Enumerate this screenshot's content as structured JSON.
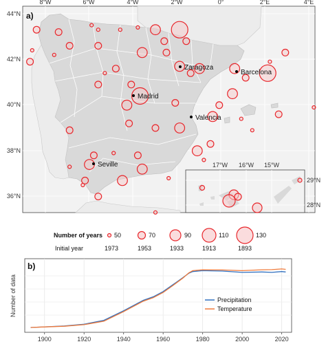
{
  "panel_a": {
    "label": "a)",
    "lon_ticks": [
      "8°W",
      "6°W",
      "4°W",
      "2°W",
      "0°",
      "2°E",
      "4°E"
    ],
    "lat_ticks": [
      "44°N",
      "42°N",
      "40°N",
      "38°N",
      "36°N"
    ],
    "cities": [
      "Zaragoza",
      "Barcelona",
      "Madrid",
      "Valencia",
      "Seville"
    ],
    "inset": {
      "lon_ticks": [
        "17°W",
        "16°W",
        "15°W"
      ],
      "lat_ticks": [
        "29°N",
        "28°N"
      ]
    },
    "colors": {
      "land": "#d9d9d9",
      "border": "#ffffff",
      "station_stroke": "#e8262b",
      "station_fill": "#f6c5c6",
      "panel_bg": "#f2f2f2"
    },
    "stations": [
      {
        "lon": -8.4,
        "lat": 43.3,
        "years": 70
      },
      {
        "lon": -8.6,
        "lat": 42.4,
        "years": 50
      },
      {
        "lon": -8.7,
        "lat": 41.9,
        "years": 70
      },
      {
        "lon": -7.6,
        "lat": 42.2,
        "years": 50
      },
      {
        "lon": -7.4,
        "lat": 43.2,
        "years": 70
      },
      {
        "lon": -6.9,
        "lat": 42.6,
        "years": 70
      },
      {
        "lon": -5.9,
        "lat": 43.5,
        "years": 50
      },
      {
        "lon": -5.6,
        "lat": 43.3,
        "years": 50
      },
      {
        "lon": -5.6,
        "lat": 42.6,
        "years": 70
      },
      {
        "lon": -4.6,
        "lat": 43.3,
        "years": 50
      },
      {
        "lon": -3.8,
        "lat": 43.4,
        "years": 50
      },
      {
        "lon": -3.6,
        "lat": 42.3,
        "years": 90
      },
      {
        "lon": -3.0,
        "lat": 43.3,
        "years": 90
      },
      {
        "lon": -2.6,
        "lat": 42.8,
        "years": 70
      },
      {
        "lon": -1.9,
        "lat": 43.3,
        "years": 130
      },
      {
        "lon": -1.6,
        "lat": 42.8,
        "years": 70
      },
      {
        "lon": -2.5,
        "lat": 42.3,
        "years": 70
      },
      {
        "lon": -5.3,
        "lat": 41.4,
        "years": 50
      },
      {
        "lon": -4.8,
        "lat": 41.6,
        "years": 70
      },
      {
        "lon": -4.1,
        "lat": 40.9,
        "years": 70
      },
      {
        "lon": -1.9,
        "lat": 41.7,
        "years": 90
      },
      {
        "lon": -1.4,
        "lat": 41.4,
        "years": 70
      },
      {
        "lon": -1.0,
        "lat": 41.6,
        "years": 90
      },
      {
        "lon": 0.6,
        "lat": 41.6,
        "years": 90
      },
      {
        "lon": 1.1,
        "lat": 41.2,
        "years": 70
      },
      {
        "lon": 2.1,
        "lat": 41.4,
        "years": 130
      },
      {
        "lon": 2.9,
        "lat": 42.3,
        "years": 70
      },
      {
        "lon": 2.2,
        "lat": 41.9,
        "years": 50
      },
      {
        "lon": -3.7,
        "lat": 40.4,
        "years": 130
      },
      {
        "lon": -4.3,
        "lat": 40.0,
        "years": 90
      },
      {
        "lon": -5.6,
        "lat": 40.9,
        "years": 70
      },
      {
        "lon": -2.1,
        "lat": 40.1,
        "years": 70
      },
      {
        "lon": -0.4,
        "lat": 39.5,
        "years": 90
      },
      {
        "lon": -0.1,
        "lat": 40.0,
        "years": 70
      },
      {
        "lon": 0.5,
        "lat": 40.5,
        "years": 90
      },
      {
        "lon": -3.0,
        "lat": 39.0,
        "years": 70
      },
      {
        "lon": -1.9,
        "lat": 39.0,
        "years": 90
      },
      {
        "lon": -4.2,
        "lat": 39.2,
        "years": 70
      },
      {
        "lon": -6.9,
        "lat": 38.9,
        "years": 70
      },
      {
        "lon": -5.8,
        "lat": 37.8,
        "years": 70
      },
      {
        "lon": -0.5,
        "lat": 38.3,
        "years": 70
      },
      {
        "lon": -1.1,
        "lat": 38.0,
        "years": 90
      },
      {
        "lon": -0.8,
        "lat": 37.6,
        "years": 50
      },
      {
        "lon": -3.8,
        "lat": 37.8,
        "years": 70
      },
      {
        "lon": -4.9,
        "lat": 37.9,
        "years": 50
      },
      {
        "lon": -3.6,
        "lat": 37.2,
        "years": 90
      },
      {
        "lon": -2.4,
        "lat": 36.8,
        "years": 50
      },
      {
        "lon": -6.0,
        "lat": 37.4,
        "years": 90
      },
      {
        "lon": -6.9,
        "lat": 37.3,
        "years": 50
      },
      {
        "lon": -6.2,
        "lat": 36.7,
        "years": 70
      },
      {
        "lon": -4.5,
        "lat": 36.7,
        "years": 90
      },
      {
        "lon": -5.6,
        "lat": 36.0,
        "years": 70
      },
      {
        "lon": -6.3,
        "lat": 36.5,
        "years": 50
      },
      {
        "lon": -3.0,
        "lat": 35.3,
        "years": 50
      },
      {
        "lon": 2.6,
        "lat": 39.6,
        "years": 70
      },
      {
        "lon": 4.2,
        "lat": 39.9,
        "years": 50
      },
      {
        "lon": 1.4,
        "lat": 38.9,
        "years": 50
      },
      {
        "lon": 0.9,
        "lat": 39.4,
        "years": 50
      }
    ]
  },
  "legend": {
    "size_title": "Number of years",
    "initial_title": "Initial year",
    "items": [
      {
        "years": "50",
        "initial": "1973"
      },
      {
        "years": "70",
        "initial": "1953"
      },
      {
        "years": "90",
        "initial": "1933"
      },
      {
        "years": "110",
        "initial": "1913"
      },
      {
        "years": "130",
        "initial": "1893"
      }
    ]
  },
  "panel_b": {
    "label": "b)",
    "chart_data": {
      "type": "line",
      "ylabel": "Number of data",
      "xlim": [
        1890,
        2025
      ],
      "ylim": [
        0,
        750
      ],
      "x_ticks": [
        "1900",
        "1920",
        "1940",
        "1960",
        "1980",
        "2000",
        "2020"
      ],
      "y_ticks": [],
      "legend_position": "bottom-right",
      "series": [
        {
          "name": "Precipitation",
          "color": "#2f6fbf",
          "x": [
            1893,
            1900,
            1910,
            1920,
            1930,
            1940,
            1945,
            1950,
            1955,
            1960,
            1965,
            1970,
            1973,
            1975,
            1980,
            1990,
            2000,
            2010,
            2015,
            2020,
            2022
          ],
          "y": [
            8,
            15,
            25,
            45,
            90,
            200,
            260,
            320,
            360,
            420,
            500,
            580,
            630,
            650,
            660,
            655,
            640,
            645,
            640,
            650,
            645
          ]
        },
        {
          "name": "Temperature",
          "color": "#f07a3a",
          "x": [
            1893,
            1900,
            1910,
            1920,
            1930,
            1940,
            1945,
            1950,
            1955,
            1960,
            1965,
            1970,
            1973,
            1975,
            1980,
            1990,
            2000,
            2010,
            2015,
            2020,
            2022
          ],
          "y": [
            8,
            14,
            22,
            40,
            80,
            190,
            250,
            310,
            350,
            410,
            490,
            575,
            635,
            660,
            670,
            668,
            660,
            670,
            672,
            680,
            675
          ]
        }
      ]
    }
  }
}
